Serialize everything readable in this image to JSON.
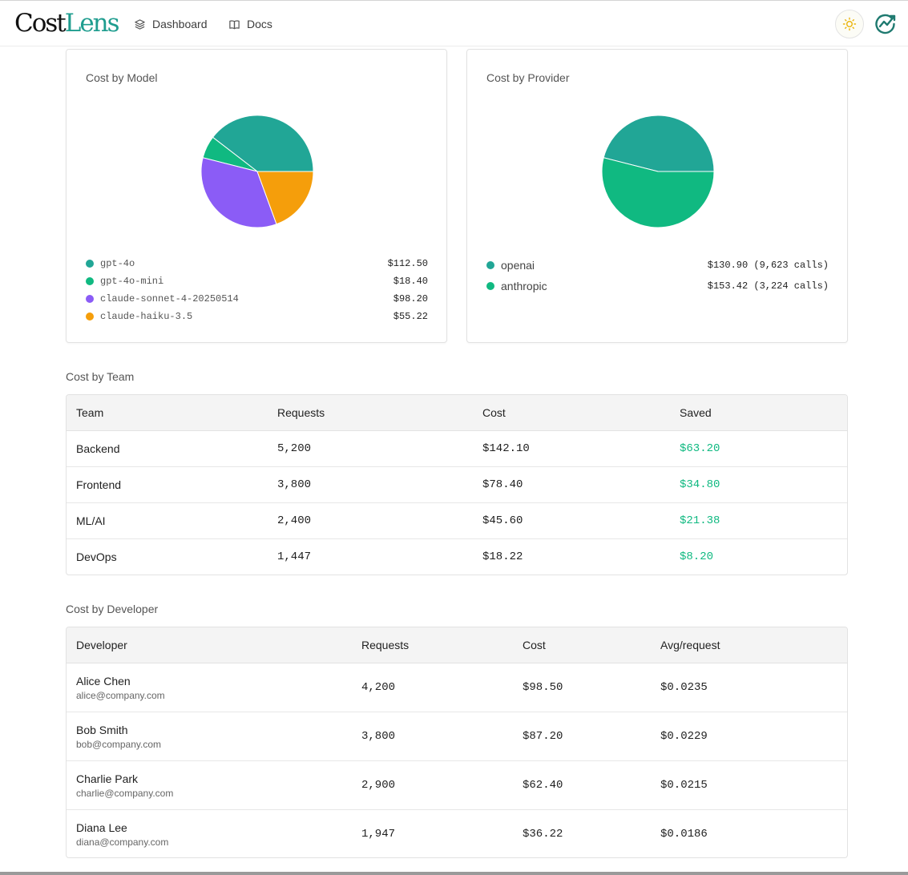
{
  "app": {
    "logo_part1": "Cost",
    "logo_part2": "Lens",
    "brand_color": "#1f9d8f",
    "nav": [
      {
        "label": "Dashboard",
        "icon": "layers-icon"
      },
      {
        "label": "Docs",
        "icon": "book-icon"
      }
    ],
    "theme_icon": "sun-icon",
    "avatar_icon": "chart-logo-icon"
  },
  "cost_by_model": {
    "title": "Cost by Model",
    "chart_data": {
      "type": "pie",
      "categories": [
        "gpt-4o",
        "gpt-4o-mini",
        "claude-sonnet-4-20250514",
        "claude-haiku-3.5"
      ],
      "values": [
        112.5,
        18.4,
        98.2,
        55.22
      ],
      "colors": [
        "#21a696",
        "#10b981",
        "#8b5cf6",
        "#f59e0b"
      ]
    },
    "legend": [
      {
        "label": "gpt-4o",
        "value": "$112.50",
        "color": "#21a696"
      },
      {
        "label": "gpt-4o-mini",
        "value": "$18.40",
        "color": "#10b981"
      },
      {
        "label": "claude-sonnet-4-20250514",
        "value": "$98.20",
        "color": "#8b5cf6"
      },
      {
        "label": "claude-haiku-3.5",
        "value": "$55.22",
        "color": "#f59e0b"
      }
    ]
  },
  "cost_by_provider": {
    "title": "Cost by Provider",
    "chart_data": {
      "type": "pie",
      "categories": [
        "openai",
        "anthropic"
      ],
      "values": [
        130.9,
        153.42
      ],
      "colors": [
        "#21a696",
        "#10b981"
      ]
    },
    "legend": [
      {
        "label": "openai",
        "value": "$130.90 (9,623 calls)",
        "color": "#21a696"
      },
      {
        "label": "anthropic",
        "value": "$153.42 (3,224 calls)",
        "color": "#10b981"
      }
    ]
  },
  "cost_by_team": {
    "title": "Cost by Team",
    "columns": [
      "Team",
      "Requests",
      "Cost",
      "Saved"
    ],
    "rows": [
      {
        "team": "Backend",
        "requests": "5,200",
        "cost": "$142.10",
        "saved": "$63.20"
      },
      {
        "team": "Frontend",
        "requests": "3,800",
        "cost": "$78.40",
        "saved": "$34.80"
      },
      {
        "team": "ML/AI",
        "requests": "2,400",
        "cost": "$45.60",
        "saved": "$21.38"
      },
      {
        "team": "DevOps",
        "requests": "1,447",
        "cost": "$18.22",
        "saved": "$8.20"
      }
    ]
  },
  "cost_by_developer": {
    "title": "Cost by Developer",
    "columns": [
      "Developer",
      "Requests",
      "Cost",
      "Avg/request"
    ],
    "rows": [
      {
        "name": "Alice Chen",
        "email": "alice@company.com",
        "requests": "4,200",
        "cost": "$98.50",
        "avg": "$0.0235"
      },
      {
        "name": "Bob Smith",
        "email": "bob@company.com",
        "requests": "3,800",
        "cost": "$87.20",
        "avg": "$0.0229"
      },
      {
        "name": "Charlie Park",
        "email": "charlie@company.com",
        "requests": "2,900",
        "cost": "$62.40",
        "avg": "$0.0215"
      },
      {
        "name": "Diana Lee",
        "email": "diana@company.com",
        "requests": "1,947",
        "cost": "$36.22",
        "avg": "$0.0186"
      }
    ]
  }
}
